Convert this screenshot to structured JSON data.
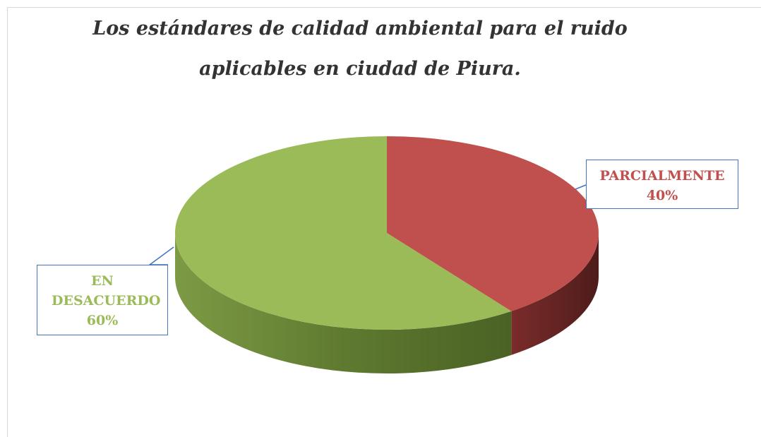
{
  "chart_data": {
    "type": "pie",
    "title": "Los estándares de calidad ambiental para el ruido aplicables en ciudad de Piura.",
    "categories": [
      "PARCIALMENTE",
      "EN DESACUERDO"
    ],
    "values": [
      40,
      60
    ],
    "value_labels": [
      "40%",
      "60%"
    ],
    "colors": [
      "#c0504d",
      "#9bbb59"
    ]
  }
}
